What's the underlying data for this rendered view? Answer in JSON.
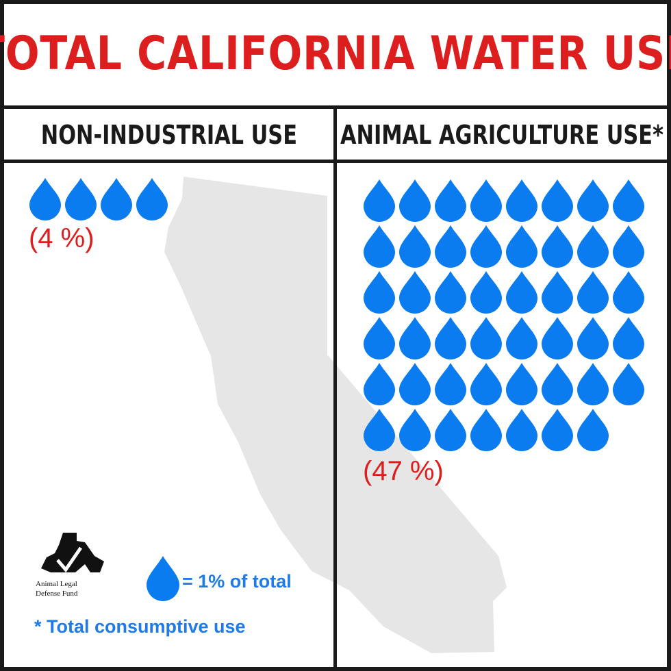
{
  "chart_data": {
    "type": "pictograph",
    "title": "TOTAL CALIFORNIA WATER USE",
    "categories": [
      "NON-INDUSTRIAL USE",
      "ANIMAL AGRICULTURE USE*"
    ],
    "values": [
      4,
      47
    ],
    "value_labels": [
      "(4 %)",
      "(47 %)"
    ],
    "unit_label": "= 1% of total",
    "footnote": "* Total consumptive use",
    "icon": "water-drop-icon",
    "colors": {
      "drop": "#0a7cf0",
      "title": "#dd1e1e",
      "map": "#e6e6e6",
      "text_blue": "#1e7be8"
    }
  },
  "logo": {
    "line1": "Animal Legal",
    "line2": "Defense Fund"
  },
  "background_icon": "california-map-icon"
}
